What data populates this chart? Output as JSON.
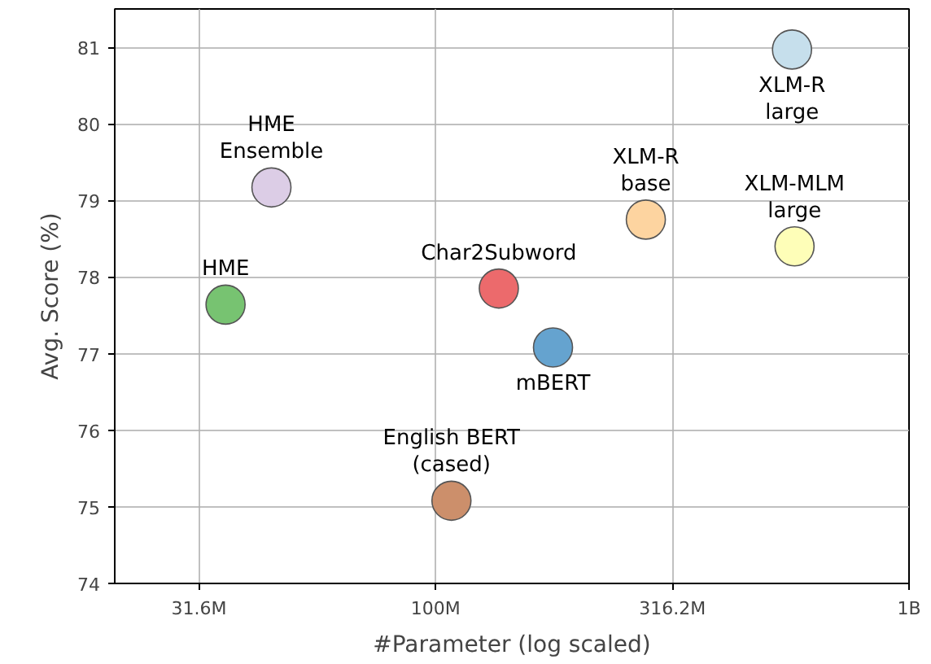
{
  "chart_data": {
    "type": "scatter",
    "xlabel": "#Parameter (log scaled)",
    "ylabel": "Avg. Score (%)",
    "log": "x",
    "xlim": [
      21000000,
      1000000000
    ],
    "xticks": [
      {
        "value": 31622777,
        "label": "31.6M"
      },
      {
        "value": 100000000,
        "label": "100M"
      },
      {
        "value": 316227766,
        "label": "316.2M"
      },
      {
        "value": 1000000000,
        "label": "1B"
      }
    ],
    "ylim": [
      74,
      81.5
    ],
    "yticks": [
      74,
      75,
      76,
      77,
      78,
      79,
      80,
      81
    ],
    "grid": true,
    "marker": "circle",
    "series": [
      {
        "name": "XLM-R large",
        "color": "#c6dfec",
        "x": [
          566000000
        ],
        "values": [
          80.97
        ]
      },
      {
        "name": "HME Ensemble",
        "color": "#dccde6",
        "x": [
          45000000
        ],
        "values": [
          79.17
        ]
      },
      {
        "name": "XLM-R base",
        "color": "#fdd4a0",
        "x": [
          278000000
        ],
        "values": [
          78.75
        ]
      },
      {
        "name": "XLM-MLM large",
        "color": "#fefeb8",
        "x": [
          573000000
        ],
        "values": [
          78.4
        ]
      },
      {
        "name": "HME",
        "color": "#77c371",
        "x": [
          36000000
        ],
        "values": [
          77.64
        ]
      },
      {
        "name": "Char2Subword",
        "color": "#ec6a6c",
        "x": [
          136000000
        ],
        "values": [
          77.85
        ]
      },
      {
        "name": "mBERT",
        "color": "#65a3cf",
        "x": [
          177000000
        ],
        "values": [
          77.08
        ]
      },
      {
        "name": "English BERT (cased)",
        "color": "#cc8f6b",
        "x": [
          108000000
        ],
        "values": [
          75.08
        ]
      }
    ]
  }
}
